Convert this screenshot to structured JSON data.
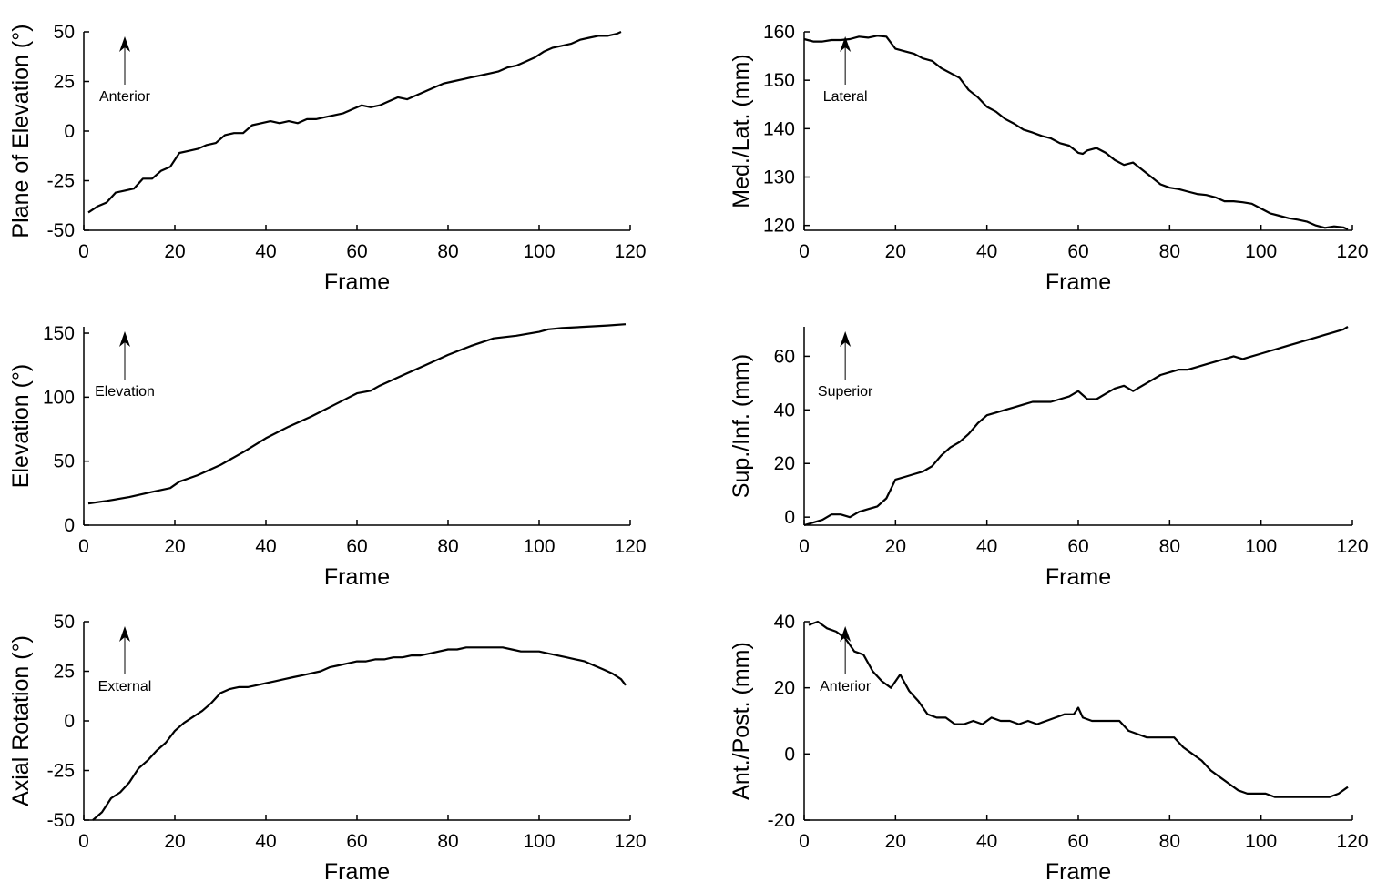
{
  "chart_data": [
    {
      "type": "line",
      "id": "plane-of-elevation",
      "title": "",
      "xlabel": "Frame",
      "ylabel": "Plane of Elevation (°)",
      "xlim": [
        0,
        120
      ],
      "ylim": [
        -50,
        50
      ],
      "xticks": [
        0,
        20,
        40,
        60,
        80,
        100,
        120
      ],
      "yticks": [
        -50,
        -25,
        0,
        25,
        50
      ],
      "annotation": "Anterior",
      "annotation_x": 9,
      "series": [
        {
          "name": "Plane of Elevation",
          "x": [
            1,
            3,
            5,
            7,
            9,
            11,
            13,
            15,
            17,
            19,
            21,
            23,
            25,
            27,
            29,
            31,
            33,
            35,
            37,
            39,
            41,
            43,
            45,
            47,
            49,
            51,
            53,
            55,
            57,
            59,
            61,
            63,
            65,
            67,
            69,
            71,
            73,
            75,
            77,
            79,
            81,
            83,
            85,
            87,
            89,
            91,
            93,
            95,
            97,
            99,
            101,
            103,
            105,
            107,
            109,
            111,
            113,
            115,
            117,
            118
          ],
          "y": [
            -41,
            -38,
            -36,
            -31,
            -30,
            -29,
            -24,
            -24,
            -20,
            -18,
            -11,
            -10,
            -9,
            -7,
            -6,
            -2,
            -1,
            -1,
            3,
            4,
            5,
            4,
            5,
            4,
            6,
            6,
            7,
            8,
            9,
            11,
            13,
            12,
            13,
            15,
            17,
            16,
            18,
            20,
            22,
            24,
            25,
            26,
            27,
            28,
            29,
            30,
            32,
            33,
            35,
            37,
            40,
            42,
            43,
            44,
            46,
            47,
            48,
            48,
            49,
            50
          ]
        }
      ]
    },
    {
      "type": "line",
      "id": "med-lat",
      "title": "",
      "xlabel": "Frame",
      "ylabel": "Med./Lat. (mm)",
      "xlim": [
        0,
        120
      ],
      "ylim": [
        119,
        160
      ],
      "xticks": [
        0,
        20,
        40,
        60,
        80,
        100,
        120
      ],
      "yticks": [
        120,
        130,
        140,
        150,
        160
      ],
      "annotation": "Lateral",
      "annotation_x": 9,
      "series": [
        {
          "name": "Med./Lat.",
          "x": [
            0,
            2,
            4,
            6,
            8,
            10,
            12,
            14,
            16,
            18,
            20,
            22,
            24,
            26,
            28,
            30,
            32,
            34,
            36,
            38,
            40,
            42,
            44,
            46,
            48,
            50,
            52,
            54,
            56,
            58,
            60,
            61,
            62,
            64,
            66,
            68,
            70,
            72,
            74,
            76,
            78,
            80,
            82,
            84,
            86,
            88,
            90,
            92,
            94,
            96,
            98,
            100,
            102,
            104,
            106,
            108,
            110,
            112,
            114,
            116,
            118,
            119
          ],
          "y": [
            158.5,
            158,
            158,
            158.3,
            158.3,
            158.5,
            159,
            158.8,
            159.2,
            159,
            156.5,
            156,
            155.5,
            154.5,
            154,
            152.5,
            151.5,
            150.5,
            148,
            146.5,
            144.5,
            143.5,
            142,
            141,
            139.8,
            139.2,
            138.5,
            138,
            137,
            136.5,
            135,
            134.8,
            135.5,
            136,
            135,
            133.5,
            132.5,
            133,
            131.5,
            130,
            128.5,
            127.8,
            127.5,
            127,
            126.5,
            126.3,
            125.8,
            125,
            125,
            124.8,
            124.5,
            123.5,
            122.5,
            122,
            121.5,
            121.2,
            120.8,
            120,
            119.5,
            119.8,
            119.6,
            119.2
          ]
        }
      ]
    },
    {
      "type": "line",
      "id": "elevation",
      "title": "",
      "xlabel": "Frame",
      "ylabel": "Elevation (°)",
      "xlim": [
        0,
        120
      ],
      "ylim": [
        0,
        155
      ],
      "xticks": [
        0,
        20,
        40,
        60,
        80,
        100,
        120
      ],
      "yticks": [
        0,
        50,
        100,
        150
      ],
      "annotation": "Elevation",
      "annotation_x": 9,
      "series": [
        {
          "name": "Elevation",
          "x": [
            1,
            5,
            10,
            15,
            19,
            21,
            25,
            30,
            35,
            40,
            45,
            50,
            55,
            60,
            63,
            65,
            70,
            75,
            80,
            85,
            90,
            95,
            100,
            102,
            105,
            110,
            115,
            119
          ],
          "y": [
            17,
            19,
            22,
            26,
            29,
            34,
            39,
            47,
            57,
            68,
            77,
            85,
            94,
            103,
            105,
            109,
            117,
            125,
            133,
            140,
            146,
            148,
            151,
            153,
            154,
            155,
            156,
            157
          ]
        }
      ]
    },
    {
      "type": "line",
      "id": "sup-inf",
      "title": "",
      "xlabel": "Frame",
      "ylabel": "Sup./Inf. (mm)",
      "xlim": [
        0,
        120
      ],
      "ylim": [
        -3,
        71
      ],
      "xticks": [
        0,
        20,
        40,
        60,
        80,
        100,
        120
      ],
      "yticks": [
        0,
        20,
        40,
        60
      ],
      "annotation": "Superior",
      "annotation_x": 9,
      "series": [
        {
          "name": "Sup./Inf.",
          "x": [
            0,
            2,
            4,
            6,
            8,
            10,
            12,
            14,
            16,
            18,
            20,
            22,
            24,
            26,
            28,
            30,
            32,
            34,
            36,
            38,
            40,
            42,
            44,
            46,
            48,
            50,
            52,
            54,
            56,
            58,
            60,
            62,
            64,
            66,
            68,
            70,
            72,
            74,
            76,
            78,
            80,
            82,
            84,
            86,
            88,
            90,
            92,
            94,
            96,
            98,
            100,
            102,
            104,
            106,
            108,
            110,
            112,
            114,
            116,
            118,
            119
          ],
          "y": [
            -3,
            -2,
            -1,
            1,
            1,
            0,
            2,
            3,
            4,
            7,
            14,
            15,
            16,
            17,
            19,
            23,
            26,
            28,
            31,
            35,
            38,
            39,
            40,
            41,
            42,
            43,
            43,
            43,
            44,
            45,
            47,
            44,
            44,
            46,
            48,
            49,
            47,
            49,
            51,
            53,
            54,
            55,
            55,
            56,
            57,
            58,
            59,
            60,
            59,
            60,
            61,
            62,
            63,
            64,
            65,
            66,
            67,
            68,
            69,
            70,
            71
          ]
        }
      ]
    },
    {
      "type": "line",
      "id": "axial-rotation",
      "title": "",
      "xlabel": "Frame",
      "ylabel": "Axial Rotation (°)",
      "xlim": [
        0,
        120
      ],
      "ylim": [
        -50,
        50
      ],
      "xticks": [
        0,
        20,
        40,
        60,
        80,
        100,
        120
      ],
      "yticks": [
        -50,
        -25,
        0,
        25,
        50
      ],
      "annotation": "External",
      "annotation_x": 9,
      "series": [
        {
          "name": "Axial Rotation",
          "x": [
            2,
            4,
            6,
            8,
            10,
            12,
            14,
            16,
            18,
            20,
            22,
            24,
            26,
            28,
            30,
            32,
            34,
            36,
            38,
            40,
            42,
            44,
            46,
            48,
            50,
            52,
            54,
            56,
            58,
            60,
            62,
            64,
            66,
            68,
            70,
            72,
            74,
            76,
            78,
            80,
            82,
            84,
            86,
            88,
            90,
            92,
            94,
            96,
            98,
            100,
            102,
            104,
            106,
            108,
            110,
            112,
            114,
            116,
            118,
            119
          ],
          "y": [
            -50,
            -46,
            -39,
            -36,
            -31,
            -24,
            -20,
            -15,
            -11,
            -5,
            -1,
            2,
            5,
            9,
            14,
            16,
            17,
            17,
            18,
            19,
            20,
            21,
            22,
            23,
            24,
            25,
            27,
            28,
            29,
            30,
            30,
            31,
            31,
            32,
            32,
            33,
            33,
            34,
            35,
            36,
            36,
            37,
            37,
            37,
            37,
            37,
            36,
            35,
            35,
            35,
            34,
            33,
            32,
            31,
            30,
            28,
            26,
            24,
            21,
            18
          ]
        }
      ]
    },
    {
      "type": "line",
      "id": "ant-post",
      "title": "",
      "xlabel": "Frame",
      "ylabel": "Ant./Post. (mm)",
      "xlim": [
        0,
        120
      ],
      "ylim": [
        -20,
        40
      ],
      "xticks": [
        0,
        20,
        40,
        60,
        80,
        100,
        120
      ],
      "yticks": [
        -20,
        0,
        20,
        40
      ],
      "annotation": "Anterior",
      "annotation_x": 9,
      "series": [
        {
          "name": "Ant./Post.",
          "x": [
            1,
            3,
            5,
            7,
            9,
            11,
            13,
            15,
            17,
            19,
            21,
            23,
            25,
            27,
            29,
            31,
            33,
            35,
            37,
            39,
            41,
            43,
            45,
            47,
            49,
            51,
            53,
            55,
            57,
            59,
            60,
            61,
            63,
            65,
            67,
            69,
            71,
            73,
            75,
            77,
            79,
            81,
            83,
            85,
            87,
            89,
            91,
            93,
            95,
            97,
            99,
            101,
            103,
            105,
            107,
            109,
            111,
            113,
            115,
            117,
            119
          ],
          "y": [
            39,
            40,
            38,
            37,
            35,
            31,
            30,
            25,
            22,
            20,
            24,
            19,
            16,
            12,
            11,
            11,
            9,
            9,
            10,
            9,
            11,
            10,
            10,
            9,
            10,
            9,
            10,
            11,
            12,
            12,
            14,
            11,
            10,
            10,
            10,
            10,
            7,
            6,
            5,
            5,
            5,
            5,
            2,
            0,
            -2,
            -5,
            -7,
            -9,
            -11,
            -12,
            -12,
            -12,
            -13,
            -13,
            -13,
            -13,
            -13,
            -13,
            -13,
            -12,
            -10
          ]
        }
      ]
    }
  ]
}
